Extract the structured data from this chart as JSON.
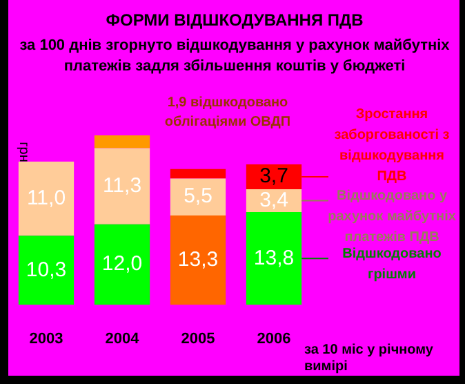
{
  "chart_data": {
    "type": "bar",
    "stacked": true,
    "legend": false,
    "grid": false,
    "title": "ФОРМИ ВІДШКОДУВАННЯ ПДВ",
    "subtitle": "за 100 днів згорнуто відшкодування у рахунок майбутніх платежів задля збільшення коштів у бюджеті",
    "ylabel": "грн",
    "categories": [
      "2003",
      "2004",
      "2005",
      "2006"
    ],
    "series": [
      {
        "name": "Відшкодовано грішми",
        "color": "#00ff00",
        "colors": [
          "#00ff00",
          "#00ff00",
          "#ff6600",
          "#00ff00"
        ],
        "values": [
          10.3,
          12.0,
          13.3,
          13.8
        ],
        "value_labels": [
          "10,3",
          "12,0",
          "13,3",
          "13,8"
        ]
      },
      {
        "name": "Відшкодовано у рахунок майбутніх платежів ПДВ",
        "color": "#ffcc99",
        "values": [
          11.0,
          11.3,
          5.5,
          3.4
        ],
        "value_labels": [
          "11,0",
          "11,3",
          "5,5",
          "3,4"
        ]
      },
      {
        "color": "#ff9900",
        "values": [
          null,
          1.9,
          null,
          null
        ]
      },
      {
        "name": "Зростання заборгованості з відшкодування ПДВ",
        "color": "#ff0000",
        "values": [
          null,
          null,
          1.4,
          3.7
        ],
        "value_labels": [
          null,
          null,
          null,
          "3,7"
        ]
      }
    ],
    "annotations": [
      "1,9 відшкодовано облігаціями ОВДП",
      "за 10 міс у річному вимірі"
    ]
  }
}
